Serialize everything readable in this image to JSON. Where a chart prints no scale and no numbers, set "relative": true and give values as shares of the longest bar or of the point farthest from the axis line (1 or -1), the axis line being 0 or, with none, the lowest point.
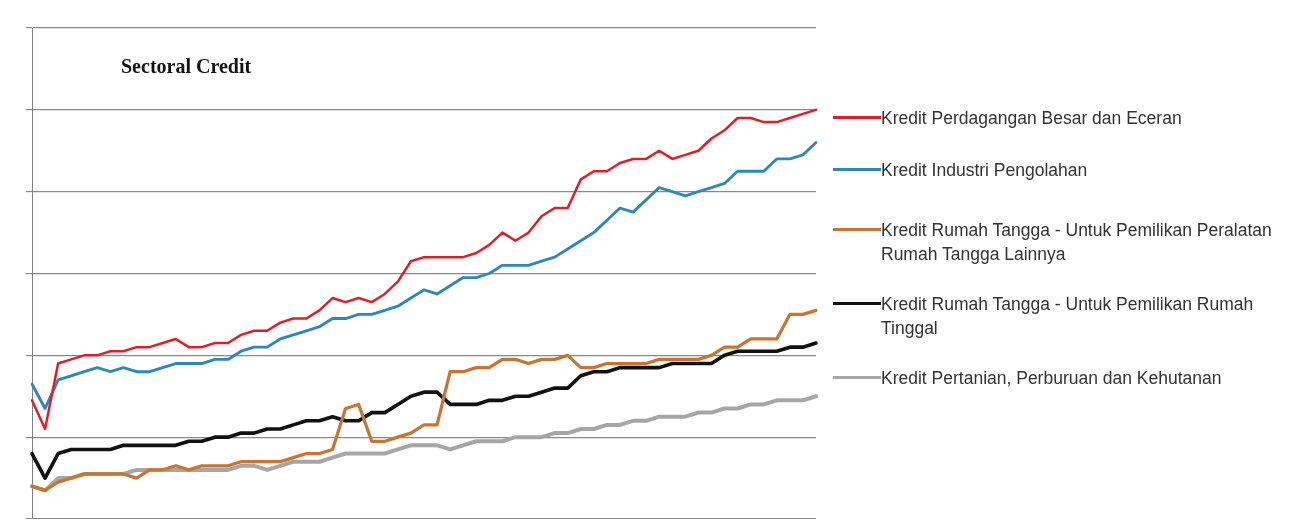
{
  "chart_data": {
    "type": "line",
    "title": "Sectoral Credit",
    "relative": true,
    "grid": "y",
    "legend": "right",
    "marker": "none",
    "categories": [
      null,
      null,
      null,
      null,
      null,
      null,
      null,
      null,
      null,
      null,
      null,
      null,
      null,
      null,
      null,
      null,
      null,
      null,
      null,
      null,
      null,
      null,
      null,
      null,
      null,
      null,
      null,
      null,
      null,
      null,
      null,
      null,
      null,
      null,
      null,
      null,
      null,
      null,
      null,
      null,
      null,
      null,
      null,
      null,
      null,
      null,
      null,
      null,
      null,
      null,
      null,
      null,
      null,
      null,
      null,
      null,
      null,
      null,
      null,
      null,
      null
    ],
    "series": [
      {
        "name": "Kredit Perdagangan Besar dan Eceran",
        "color": "#dc2028",
        "values": [
          0.29,
          0.22,
          0.38,
          0.39,
          0.4,
          0.4,
          0.41,
          0.41,
          0.42,
          0.42,
          0.43,
          0.44,
          0.42,
          0.42,
          0.43,
          0.43,
          0.45,
          0.46,
          0.46,
          0.48,
          0.49,
          0.49,
          0.51,
          0.54,
          0.53,
          0.54,
          0.53,
          0.55,
          0.58,
          0.63,
          0.64,
          0.64,
          0.64,
          0.64,
          0.65,
          0.67,
          0.7,
          0.68,
          0.7,
          0.74,
          0.76,
          0.76,
          0.83,
          0.85,
          0.85,
          0.87,
          0.88,
          0.88,
          0.9,
          0.88,
          0.89,
          0.9,
          0.93,
          0.95,
          0.98,
          0.98,
          0.97,
          0.97,
          0.98,
          0.99,
          1
        ]
      },
      {
        "name": "Kredit Industri Pengolahan",
        "color": "#2e86c1",
        "values": [
          0.33,
          0.27,
          0.34,
          0.35,
          0.36,
          0.37,
          0.36,
          0.37,
          0.36,
          0.36,
          0.37,
          0.38,
          0.38,
          0.38,
          0.39,
          0.39,
          0.41,
          0.42,
          0.42,
          0.44,
          0.45,
          0.46,
          0.47,
          0.49,
          0.49,
          0.5,
          0.5,
          0.51,
          0.52,
          0.54,
          0.56,
          0.55,
          0.57,
          0.59,
          0.59,
          0.6,
          0.62,
          0.62,
          0.62,
          0.63,
          0.64,
          0.66,
          0.68,
          0.7,
          0.73,
          0.76,
          0.75,
          0.78,
          0.81,
          0.8,
          0.79,
          0.8,
          0.81,
          0.82,
          0.85,
          0.85,
          0.85,
          0.88,
          0.88,
          0.89,
          0.92
        ]
      },
      {
        "name": "Kredit Rumah Tangga - Untuk Pemilikan Peralatan Rumah Tangga Lainnya",
        "color": "#c87533",
        "values": [
          0.08,
          0.07,
          0.09,
          0.1,
          0.11,
          0.11,
          0.11,
          0.11,
          0.1,
          0.12,
          0.12,
          0.13,
          0.12,
          0.13,
          0.13,
          0.13,
          0.14,
          0.14,
          0.14,
          0.14,
          0.15,
          0.16,
          0.16,
          0.17,
          0.27,
          0.28,
          0.19,
          0.19,
          0.2,
          0.21,
          0.23,
          0.23,
          0.36,
          0.36,
          0.37,
          0.37,
          0.39,
          0.39,
          0.38,
          0.39,
          0.39,
          0.4,
          0.37,
          0.37,
          0.38,
          0.38,
          0.38,
          0.38,
          0.39,
          0.39,
          0.39,
          0.39,
          0.4,
          0.42,
          0.42,
          0.44,
          0.44,
          0.44,
          0.5,
          0.5,
          0.51
        ]
      },
      {
        "name": "Kredit Rumah Tangga -  Untuk Pemilikan Rumah Tinggal",
        "color": "#111111",
        "values": [
          0.16,
          0.1,
          0.16,
          0.17,
          0.17,
          0.17,
          0.17,
          0.18,
          0.18,
          0.18,
          0.18,
          0.18,
          0.19,
          0.19,
          0.2,
          0.2,
          0.21,
          0.21,
          0.22,
          0.22,
          0.23,
          0.24,
          0.24,
          0.25,
          0.24,
          0.24,
          0.26,
          0.26,
          0.28,
          0.3,
          0.31,
          0.31,
          0.28,
          0.28,
          0.28,
          0.29,
          0.29,
          0.3,
          0.3,
          0.31,
          0.32,
          0.32,
          0.35,
          0.36,
          0.36,
          0.37,
          0.37,
          0.37,
          0.37,
          0.38,
          0.38,
          0.38,
          0.38,
          0.4,
          0.41,
          0.41,
          0.41,
          0.41,
          0.42,
          0.42,
          0.43
        ]
      },
      {
        "name": "Kredit Pertanian, Perburuan dan Kehutanan",
        "color": "#a6a6a6",
        "values": [
          0.08,
          0.07,
          0.1,
          0.1,
          0.11,
          0.11,
          0.11,
          0.11,
          0.12,
          0.12,
          0.12,
          0.12,
          0.12,
          0.12,
          0.12,
          0.12,
          0.13,
          0.13,
          0.12,
          0.13,
          0.14,
          0.14,
          0.14,
          0.15,
          0.16,
          0.16,
          0.16,
          0.16,
          0.17,
          0.18,
          0.18,
          0.18,
          0.17,
          0.18,
          0.19,
          0.19,
          0.19,
          0.2,
          0.2,
          0.2,
          0.21,
          0.21,
          0.22,
          0.22,
          0.23,
          0.23,
          0.24,
          0.24,
          0.25,
          0.25,
          0.25,
          0.26,
          0.26,
          0.27,
          0.27,
          0.28,
          0.28,
          0.29,
          0.29,
          0.29,
          0.3
        ]
      }
    ]
  }
}
